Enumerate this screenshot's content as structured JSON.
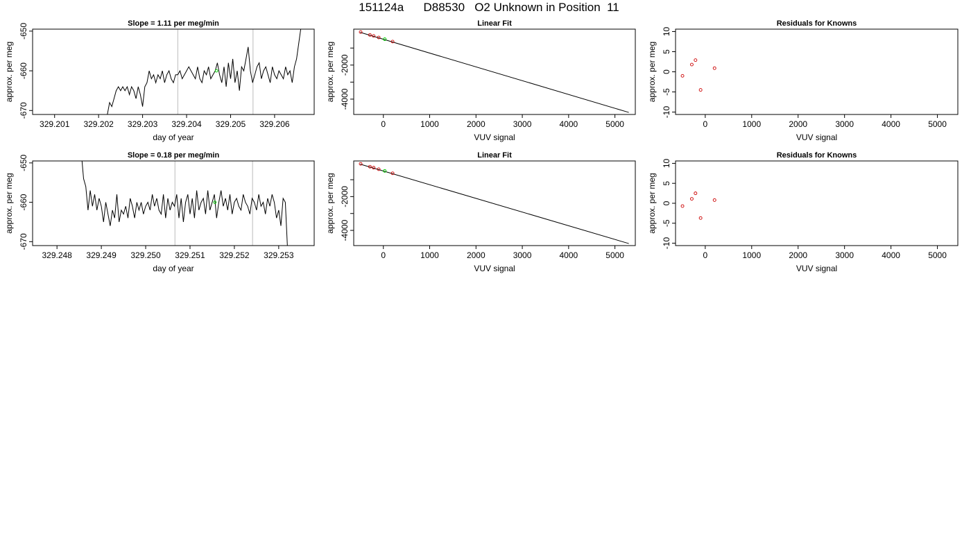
{
  "page_title": "151124a      D88530   O2 Unknown in Position  11",
  "colors": {
    "series": "#000000",
    "knowns": "#cc0000",
    "unknown": "#00cc00",
    "vline": "#bbbbbb",
    "fitline": "#000000"
  },
  "chart_data": [
    {
      "id": "r1-timeseries",
      "type": "line",
      "title": "Slope =  1.11  per meg/min",
      "xlabel": "day of year",
      "ylabel": "approx. per meg",
      "xlim": [
        329.2005,
        329.2069
      ],
      "ylim": [
        -671,
        -649.5
      ],
      "xticks": [
        329.201,
        329.202,
        329.203,
        329.204,
        329.205,
        329.206
      ],
      "xtick_labels": [
        "329.201",
        "329.202",
        "329.203",
        "329.204",
        "329.205",
        "329.206"
      ],
      "yticks": [
        -670,
        -660,
        -650
      ],
      "ytick_labels": [
        "-670",
        "-660",
        "-650"
      ],
      "vlines": [
        329.2038,
        329.20551
      ],
      "series": [
        {
          "x": [
            329.2022,
            329.20225,
            329.2023,
            329.20235,
            329.2024,
            329.20245,
            329.2025,
            329.20255,
            329.2026,
            329.20265,
            329.2027,
            329.20275,
            329.2028,
            329.20285,
            329.2029,
            329.20295,
            329.203,
            329.20305,
            329.2031,
            329.20315,
            329.2032,
            329.20325,
            329.2033,
            329.20335,
            329.2034,
            329.20345,
            329.2035,
            329.20355,
            329.2036,
            329.20365,
            329.2037,
            329.20375,
            329.2038,
            329.20385,
            329.2039,
            329.20395,
            329.204,
            329.20405,
            329.2041,
            329.20415,
            329.2042,
            329.20425,
            329.2043,
            329.20435,
            329.2044,
            329.20445,
            329.2045,
            329.20455,
            329.2046,
            329.20465,
            329.2047,
            329.20475,
            329.2048,
            329.20485,
            329.2049,
            329.20495,
            329.205,
            329.20505,
            329.2051,
            329.20515,
            329.2052,
            329.20525,
            329.2053,
            329.20535,
            329.2054,
            329.20545,
            329.2055,
            329.20555,
            329.2056,
            329.20565,
            329.2057,
            329.20575,
            329.2058,
            329.20585,
            329.2059,
            329.20595,
            329.206,
            329.20605,
            329.2061,
            329.20615,
            329.2062,
            329.20625,
            329.2063,
            329.20635,
            329.2064,
            329.20645,
            329.2065,
            329.20655,
            329.2066,
            329.20665
          ],
          "y": [
            -671,
            -668,
            -669,
            -667,
            -665,
            -664,
            -665,
            -664,
            -665,
            -664,
            -666,
            -664,
            -665,
            -667,
            -664,
            -666,
            -669,
            -664,
            -663,
            -660,
            -662,
            -661,
            -663,
            -661,
            -662,
            -660,
            -663,
            -661,
            -660,
            -662,
            -663,
            -661,
            -661,
            -660,
            -662,
            -661,
            -660,
            -659,
            -660,
            -661,
            -662,
            -659,
            -662,
            -663,
            -660,
            -661,
            -659,
            -662,
            -661,
            -660,
            -658,
            -661,
            -663,
            -659,
            -664,
            -658,
            -662,
            -657,
            -663,
            -660,
            -665,
            -659,
            -660,
            -657,
            -654,
            -660,
            -663,
            -661,
            -659,
            -658,
            -662,
            -660,
            -659,
            -661,
            -663,
            -659,
            -661,
            -662,
            -660,
            -661,
            -662,
            -659,
            -661,
            -660,
            -663,
            -659,
            -657,
            -653,
            -649,
            -645
          ]
        }
      ],
      "markers": [
        {
          "x": 329.20468,
          "y": -660,
          "color": "#00cc00"
        }
      ]
    },
    {
      "id": "r1-linfit",
      "type": "scatter",
      "title": "Linear Fit",
      "xlabel": "VUV signal",
      "ylabel": "approx. per meg",
      "xlim": [
        -640,
        5440
      ],
      "ylim": [
        -4900,
        110
      ],
      "xticks": [
        0,
        1000,
        2000,
        3000,
        4000,
        5000
      ],
      "xtick_labels": [
        "0",
        "1000",
        "2000",
        "3000",
        "4000",
        "5000"
      ],
      "yticks": [
        -4000,
        -3000,
        -2000,
        -1000
      ],
      "ytick_labels": [
        "-4000",
        "",
        "-2000",
        ""
      ],
      "fit_line": {
        "x": [
          -500,
          5300
        ],
        "y": [
          -80,
          -4780
        ]
      },
      "knowns": {
        "x": [
          -490,
          -290,
          -210,
          -100,
          200
        ],
        "y": [
          -60,
          -230,
          -290,
          -380,
          -620
        ]
      },
      "unknown": {
        "x": [
          30
        ],
        "y": [
          -480
        ]
      }
    },
    {
      "id": "r1-resid",
      "type": "scatter",
      "title": "Residuals for Knowns",
      "xlabel": "VUV signal",
      "ylabel": "approx. per meg",
      "xlim": [
        -640,
        5440
      ],
      "ylim": [
        -10.6,
        10.6
      ],
      "xticks": [
        0,
        1000,
        2000,
        3000,
        4000,
        5000
      ],
      "xtick_labels": [
        "0",
        "1000",
        "2000",
        "3000",
        "4000",
        "5000"
      ],
      "yticks": [
        -10,
        -5,
        0,
        5,
        10
      ],
      "ytick_labels": [
        "-10",
        "-5",
        "0",
        "5",
        "10"
      ],
      "knowns": {
        "x": [
          -490,
          -290,
          -210,
          -100,
          200
        ],
        "y": [
          -1,
          1.8,
          2.9,
          -4.5,
          0.9
        ]
      }
    },
    {
      "id": "r2-timeseries",
      "type": "line",
      "title": "Slope =  0.18  per meg/min",
      "xlabel": "day of year",
      "ylabel": "approx. per meg",
      "xlim": [
        329.24745,
        329.2538
      ],
      "ylim": [
        -671,
        -649.5
      ],
      "xticks": [
        329.248,
        329.249,
        329.25,
        329.251,
        329.252,
        329.253
      ],
      "xtick_labels": [
        "329.248",
        "329.249",
        "329.250",
        "329.251",
        "329.252",
        "329.253"
      ],
      "yticks": [
        -670,
        -660,
        -650
      ],
      "ytick_labels": [
        "-670",
        "-660",
        "-650"
      ],
      "vlines": [
        329.25066,
        329.25241
      ],
      "series": [
        {
          "x": [
            329.24856,
            329.2486,
            329.24865,
            329.2487,
            329.24875,
            329.2488,
            329.24885,
            329.2489,
            329.24895,
            329.249,
            329.24905,
            329.2491,
            329.24915,
            329.2492,
            329.24925,
            329.2493,
            329.24935,
            329.2494,
            329.24945,
            329.2495,
            329.24955,
            329.2496,
            329.24965,
            329.2497,
            329.24975,
            329.2498,
            329.24985,
            329.2499,
            329.24995,
            329.25,
            329.25005,
            329.2501,
            329.25015,
            329.2502,
            329.25025,
            329.2503,
            329.25035,
            329.2504,
            329.25045,
            329.2505,
            329.25055,
            329.2506,
            329.25065,
            329.2507,
            329.25075,
            329.2508,
            329.25085,
            329.2509,
            329.25095,
            329.251,
            329.25105,
            329.2511,
            329.25115,
            329.2512,
            329.25125,
            329.2513,
            329.25135,
            329.2514,
            329.25145,
            329.2515,
            329.25155,
            329.2516,
            329.25165,
            329.2517,
            329.25175,
            329.2518,
            329.25185,
            329.2519,
            329.25195,
            329.252,
            329.25205,
            329.2521,
            329.25215,
            329.2522,
            329.25225,
            329.2523,
            329.25235,
            329.2524,
            329.25245,
            329.2525,
            329.25255,
            329.2526,
            329.25265,
            329.2527,
            329.25275,
            329.2528,
            329.25285,
            329.2529,
            329.25295,
            329.253,
            329.25305,
            329.2531,
            329.25315,
            329.2532
          ],
          "y": [
            -649,
            -654,
            -656,
            -662,
            -657,
            -661,
            -658,
            -662,
            -659,
            -661,
            -665,
            -660,
            -663,
            -666,
            -662,
            -664,
            -658,
            -665,
            -662,
            -663,
            -661,
            -664,
            -659,
            -661,
            -664,
            -660,
            -662,
            -660,
            -663,
            -661,
            -660,
            -662,
            -658,
            -661,
            -659,
            -662,
            -663,
            -658,
            -664,
            -659,
            -662,
            -660,
            -661,
            -658,
            -664,
            -659,
            -665,
            -660,
            -658,
            -663,
            -659,
            -664,
            -657,
            -662,
            -660,
            -659,
            -663,
            -657,
            -662,
            -660,
            -658,
            -664,
            -660,
            -657,
            -661,
            -659,
            -662,
            -658,
            -663,
            -660,
            -659,
            -661,
            -662,
            -658,
            -660,
            -661,
            -663,
            -659,
            -660,
            -662,
            -658,
            -661,
            -660,
            -663,
            -659,
            -661,
            -658,
            -660,
            -664,
            -662,
            -666,
            -659,
            -660,
            -672
          ]
        }
      ],
      "markers": [
        {
          "x": 329.25156,
          "y": -660,
          "color": "#00cc00"
        }
      ]
    },
    {
      "id": "r2-linfit",
      "type": "scatter",
      "title": "Linear Fit",
      "xlabel": "VUV signal",
      "ylabel": "approx. per meg",
      "xlim": [
        -640,
        5440
      ],
      "ylim": [
        -4900,
        110
      ],
      "xticks": [
        0,
        1000,
        2000,
        3000,
        4000,
        5000
      ],
      "xtick_labels": [
        "0",
        "1000",
        "2000",
        "3000",
        "4000",
        "5000"
      ],
      "yticks": [
        -4000,
        -3000,
        -2000,
        -1000
      ],
      "ytick_labels": [
        "-4000",
        "",
        "-2000",
        ""
      ],
      "fit_line": {
        "x": [
          -500,
          5300
        ],
        "y": [
          -80,
          -4780
        ]
      },
      "knowns": {
        "x": [
          -490,
          -290,
          -210,
          -100,
          200
        ],
        "y": [
          -60,
          -230,
          -290,
          -380,
          -620
        ]
      },
      "unknown": {
        "x": [
          30
        ],
        "y": [
          -480
        ]
      }
    },
    {
      "id": "r2-resid",
      "type": "scatter",
      "title": "Residuals for Knowns",
      "xlabel": "VUV signal",
      "ylabel": "approx. per meg",
      "xlim": [
        -640,
        5440
      ],
      "ylim": [
        -10.6,
        10.6
      ],
      "xticks": [
        0,
        1000,
        2000,
        3000,
        4000,
        5000
      ],
      "xtick_labels": [
        "0",
        "1000",
        "2000",
        "3000",
        "4000",
        "5000"
      ],
      "yticks": [
        -10,
        -5,
        0,
        5,
        10
      ],
      "ytick_labels": [
        "-10",
        "-5",
        "0",
        "5",
        "10"
      ],
      "knowns": {
        "x": [
          -490,
          -290,
          -210,
          -100,
          200
        ],
        "y": [
          -0.7,
          1.1,
          2.5,
          -3.7,
          0.8
        ]
      }
    }
  ]
}
